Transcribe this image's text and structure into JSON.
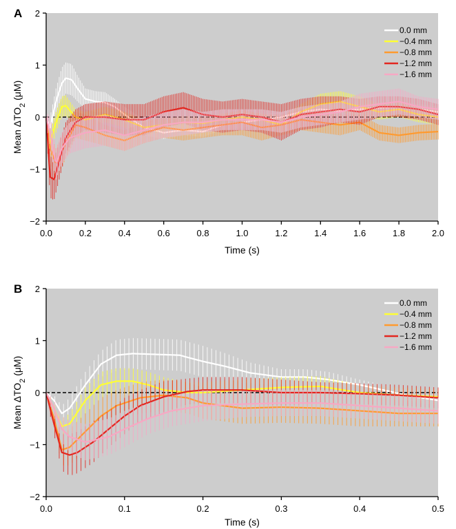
{
  "chart_data": [
    {
      "type": "line",
      "panel_label": "A",
      "xlabel": "Time (s)",
      "ylabel": "Mean ΔTO",
      "ylabel_sub": "2",
      "ylabel_unit": " (μM)",
      "xlim": [
        0,
        2.0
      ],
      "ylim": [
        -2,
        2
      ],
      "xticks": [
        0.0,
        0.2,
        0.4,
        0.6,
        0.8,
        1.0,
        1.2,
        1.4,
        1.6,
        1.8,
        2.0
      ],
      "xtick_labels": [
        "0.0",
        "0.2",
        "0.4",
        "0.6",
        "0.8",
        "1.0",
        "1.2",
        "1.4",
        "1.6",
        "1.8",
        "2.0"
      ],
      "yticks": [
        -2,
        -1,
        0,
        1,
        2
      ],
      "ytick_labels": [
        "−2",
        "−1",
        "0",
        "1",
        "2"
      ],
      "background": "#cdcdcd",
      "zero_line": true,
      "legend_position": "top-right",
      "series": [
        {
          "name": "0.0 mm",
          "color": "#ffffff",
          "x": [
            0.0,
            0.02,
            0.05,
            0.08,
            0.1,
            0.13,
            0.16,
            0.2,
            0.25,
            0.3,
            0.35,
            0.4,
            0.5,
            0.6,
            0.7,
            0.8,
            0.9,
            1.0,
            1.1,
            1.2,
            1.3,
            1.4,
            1.5,
            1.6,
            1.7,
            1.8,
            1.9,
            2.0
          ],
          "y": [
            0.0,
            -0.2,
            0.3,
            0.65,
            0.75,
            0.72,
            0.55,
            0.35,
            0.3,
            0.28,
            0.2,
            0.05,
            -0.2,
            -0.3,
            -0.25,
            -0.28,
            -0.15,
            -0.1,
            -0.05,
            0.0,
            0.1,
            0.15,
            0.12,
            0.15,
            0.18,
            0.2,
            0.15,
            0.1
          ],
          "err": [
            0.1,
            0.2,
            0.25,
            0.3,
            0.3,
            0.3,
            0.25,
            0.2,
            0.2,
            0.2,
            0.15,
            0.15,
            0.15,
            0.12,
            0.1,
            0.1,
            0.1,
            0.1,
            0.1,
            0.1,
            0.1,
            0.1,
            0.1,
            0.1,
            0.1,
            0.1,
            0.1,
            0.1
          ]
        },
        {
          "name": "−0.4 mm",
          "color": "#ffff33",
          "x": [
            0.0,
            0.02,
            0.05,
            0.08,
            0.1,
            0.15,
            0.2,
            0.3,
            0.4,
            0.5,
            0.6,
            0.7,
            0.8,
            0.9,
            1.0,
            1.1,
            1.2,
            1.3,
            1.4,
            1.5,
            1.6,
            1.7,
            1.8,
            1.9,
            2.0
          ],
          "y": [
            0.0,
            -0.5,
            -0.1,
            0.2,
            0.22,
            0.0,
            -0.05,
            0.05,
            -0.05,
            -0.2,
            -0.15,
            -0.1,
            -0.12,
            -0.05,
            0.0,
            -0.05,
            -0.15,
            0.1,
            0.25,
            0.3,
            0.2,
            0.1,
            0.15,
            0.05,
            0.0
          ],
          "err": [
            0.1,
            0.2,
            0.2,
            0.2,
            0.2,
            0.15,
            0.15,
            0.15,
            0.15,
            0.15,
            0.12,
            0.12,
            0.12,
            0.12,
            0.12,
            0.12,
            0.15,
            0.15,
            0.2,
            0.2,
            0.2,
            0.15,
            0.15,
            0.15,
            0.15
          ]
        },
        {
          "name": "−0.8 mm",
          "color": "#ff9a2e",
          "x": [
            0.0,
            0.02,
            0.05,
            0.1,
            0.15,
            0.2,
            0.3,
            0.4,
            0.5,
            0.6,
            0.7,
            0.8,
            0.9,
            1.0,
            1.1,
            1.2,
            1.3,
            1.4,
            1.5,
            1.6,
            1.7,
            1.8,
            1.9,
            2.0
          ],
          "y": [
            0.0,
            -0.6,
            -0.9,
            -0.5,
            -0.15,
            -0.2,
            -0.35,
            -0.45,
            -0.3,
            -0.2,
            -0.25,
            -0.2,
            -0.15,
            -0.1,
            -0.2,
            -0.15,
            -0.05,
            -0.1,
            -0.15,
            -0.1,
            -0.3,
            -0.35,
            -0.3,
            -0.28
          ],
          "err": [
            0.1,
            0.3,
            0.3,
            0.3,
            0.25,
            0.25,
            0.2,
            0.2,
            0.2,
            0.2,
            0.2,
            0.2,
            0.2,
            0.25,
            0.25,
            0.2,
            0.2,
            0.2,
            0.2,
            0.15,
            0.15,
            0.15,
            0.15,
            0.15
          ]
        },
        {
          "name": "−1.2 mm",
          "color": "#e3261f",
          "x": [
            0.0,
            0.02,
            0.04,
            0.07,
            0.1,
            0.15,
            0.2,
            0.3,
            0.4,
            0.5,
            0.6,
            0.7,
            0.8,
            0.9,
            1.0,
            1.1,
            1.2,
            1.3,
            1.4,
            1.5,
            1.6,
            1.7,
            1.8,
            1.9,
            2.0
          ],
          "y": [
            0.0,
            -1.15,
            -1.2,
            -0.8,
            -0.4,
            -0.1,
            0.0,
            0.0,
            -0.05,
            -0.05,
            0.1,
            0.18,
            0.05,
            0.0,
            0.05,
            0.0,
            -0.1,
            0.05,
            0.1,
            0.15,
            0.1,
            0.2,
            0.2,
            0.15,
            0.05
          ],
          "err": [
            0.1,
            0.4,
            0.4,
            0.35,
            0.3,
            0.25,
            0.25,
            0.3,
            0.3,
            0.3,
            0.3,
            0.3,
            0.3,
            0.3,
            0.3,
            0.3,
            0.35,
            0.3,
            0.3,
            0.25,
            0.25,
            0.2,
            0.2,
            0.2,
            0.2
          ]
        },
        {
          "name": "−1.6 mm",
          "color": "#f7a8c4",
          "x": [
            0.0,
            0.02,
            0.05,
            0.08,
            0.12,
            0.2,
            0.3,
            0.4,
            0.5,
            0.6,
            0.7,
            0.8,
            0.9,
            1.0,
            1.1,
            1.2,
            1.3,
            1.4,
            1.5,
            1.6,
            1.7,
            1.8,
            1.9,
            2.0
          ],
          "y": [
            0.0,
            -0.3,
            -0.9,
            -0.6,
            -0.4,
            -0.3,
            -0.25,
            -0.35,
            -0.25,
            -0.15,
            -0.1,
            -0.1,
            -0.05,
            -0.05,
            -0.05,
            -0.1,
            0.0,
            0.05,
            0.1,
            0.2,
            0.25,
            0.3,
            0.2,
            0.15
          ],
          "err": [
            0.1,
            0.3,
            0.3,
            0.3,
            0.3,
            0.3,
            0.3,
            0.3,
            0.25,
            0.25,
            0.25,
            0.2,
            0.2,
            0.2,
            0.2,
            0.2,
            0.2,
            0.2,
            0.2,
            0.25,
            0.25,
            0.25,
            0.2,
            0.2
          ]
        }
      ]
    },
    {
      "type": "line",
      "panel_label": "B",
      "xlabel": "Time (s)",
      "ylabel": "Mean ΔTO",
      "ylabel_sub": "2",
      "ylabel_unit": " (μM)",
      "xlim": [
        0,
        0.5
      ],
      "ylim": [
        -2,
        2
      ],
      "xticks": [
        0.0,
        0.1,
        0.2,
        0.3,
        0.4,
        0.5
      ],
      "xtick_labels": [
        "0.0",
        "0.1",
        "0.2",
        "0.3",
        "0.4",
        "0.5"
      ],
      "yticks": [
        -2,
        -1,
        0,
        1,
        2
      ],
      "ytick_labels": [
        "−2",
        "−1",
        "0",
        "1",
        "2"
      ],
      "background": "#cdcdcd",
      "zero_line": true,
      "legend_position": "top-right",
      "series": [
        {
          "name": "0.0 mm",
          "color": "#ffffff",
          "x": [
            0.0,
            0.01,
            0.02,
            0.03,
            0.05,
            0.07,
            0.09,
            0.11,
            0.13,
            0.15,
            0.17,
            0.2,
            0.23,
            0.26,
            0.3,
            0.33,
            0.36,
            0.4,
            0.43,
            0.46,
            0.5
          ],
          "y": [
            0.0,
            -0.15,
            -0.4,
            -0.3,
            0.15,
            0.55,
            0.72,
            0.75,
            0.74,
            0.73,
            0.72,
            0.6,
            0.5,
            0.38,
            0.3,
            0.3,
            0.25,
            0.15,
            0.05,
            -0.05,
            -0.15
          ],
          "err": [
            0.05,
            0.1,
            0.15,
            0.2,
            0.25,
            0.25,
            0.3,
            0.3,
            0.3,
            0.3,
            0.3,
            0.3,
            0.25,
            0.2,
            0.15,
            0.15,
            0.15,
            0.1,
            0.1,
            0.1,
            0.1
          ]
        },
        {
          "name": "−0.4 mm",
          "color": "#ffff33",
          "x": [
            0.0,
            0.01,
            0.02,
            0.03,
            0.05,
            0.07,
            0.09,
            0.11,
            0.13,
            0.15,
            0.18,
            0.2,
            0.25,
            0.3,
            0.35,
            0.4,
            0.45,
            0.5
          ],
          "y": [
            0.0,
            -0.3,
            -0.65,
            -0.6,
            -0.15,
            0.15,
            0.22,
            0.22,
            0.15,
            0.05,
            0.0,
            0.0,
            0.05,
            0.1,
            0.12,
            0.0,
            -0.05,
            -0.08
          ],
          "err": [
            0.05,
            0.1,
            0.15,
            0.2,
            0.25,
            0.25,
            0.25,
            0.25,
            0.25,
            0.25,
            0.2,
            0.2,
            0.2,
            0.2,
            0.2,
            0.15,
            0.15,
            0.15
          ]
        },
        {
          "name": "−0.8 mm",
          "color": "#ff9a2e",
          "x": [
            0.0,
            0.01,
            0.02,
            0.03,
            0.05,
            0.07,
            0.09,
            0.12,
            0.15,
            0.18,
            0.2,
            0.25,
            0.3,
            0.35,
            0.4,
            0.45,
            0.5
          ],
          "y": [
            0.0,
            -0.5,
            -1.1,
            -1.05,
            -0.75,
            -0.45,
            -0.25,
            -0.1,
            -0.05,
            -0.1,
            -0.2,
            -0.3,
            -0.28,
            -0.3,
            -0.35,
            -0.4,
            -0.4
          ],
          "err": [
            0.05,
            0.2,
            0.3,
            0.35,
            0.35,
            0.35,
            0.3,
            0.3,
            0.3,
            0.3,
            0.3,
            0.3,
            0.3,
            0.3,
            0.3,
            0.25,
            0.25
          ]
        },
        {
          "name": "−1.2 mm",
          "color": "#e3261f",
          "x": [
            0.0,
            0.01,
            0.02,
            0.03,
            0.04,
            0.06,
            0.08,
            0.1,
            0.12,
            0.15,
            0.18,
            0.2,
            0.25,
            0.3,
            0.35,
            0.4,
            0.45,
            0.5
          ],
          "y": [
            0.0,
            -0.6,
            -1.15,
            -1.2,
            -1.15,
            -0.95,
            -0.7,
            -0.45,
            -0.25,
            -0.08,
            0.02,
            0.05,
            0.05,
            0.0,
            0.0,
            -0.02,
            -0.05,
            -0.1
          ],
          "err": [
            0.05,
            0.2,
            0.35,
            0.4,
            0.4,
            0.4,
            0.35,
            0.35,
            0.3,
            0.3,
            0.25,
            0.25,
            0.25,
            0.25,
            0.2,
            0.2,
            0.2,
            0.2
          ]
        },
        {
          "name": "−1.6 mm",
          "color": "#f7a8c4",
          "x": [
            0.0,
            0.01,
            0.02,
            0.03,
            0.05,
            0.08,
            0.1,
            0.13,
            0.16,
            0.2,
            0.25,
            0.3,
            0.35,
            0.4,
            0.45,
            0.5
          ],
          "y": [
            0.0,
            -0.3,
            -0.7,
            -0.85,
            -0.95,
            -0.85,
            -0.7,
            -0.5,
            -0.35,
            -0.25,
            -0.22,
            -0.2,
            -0.2,
            -0.25,
            -0.3,
            -0.35
          ],
          "err": [
            0.05,
            0.15,
            0.25,
            0.3,
            0.35,
            0.35,
            0.35,
            0.3,
            0.3,
            0.3,
            0.25,
            0.25,
            0.25,
            0.25,
            0.25,
            0.25
          ]
        }
      ]
    }
  ]
}
